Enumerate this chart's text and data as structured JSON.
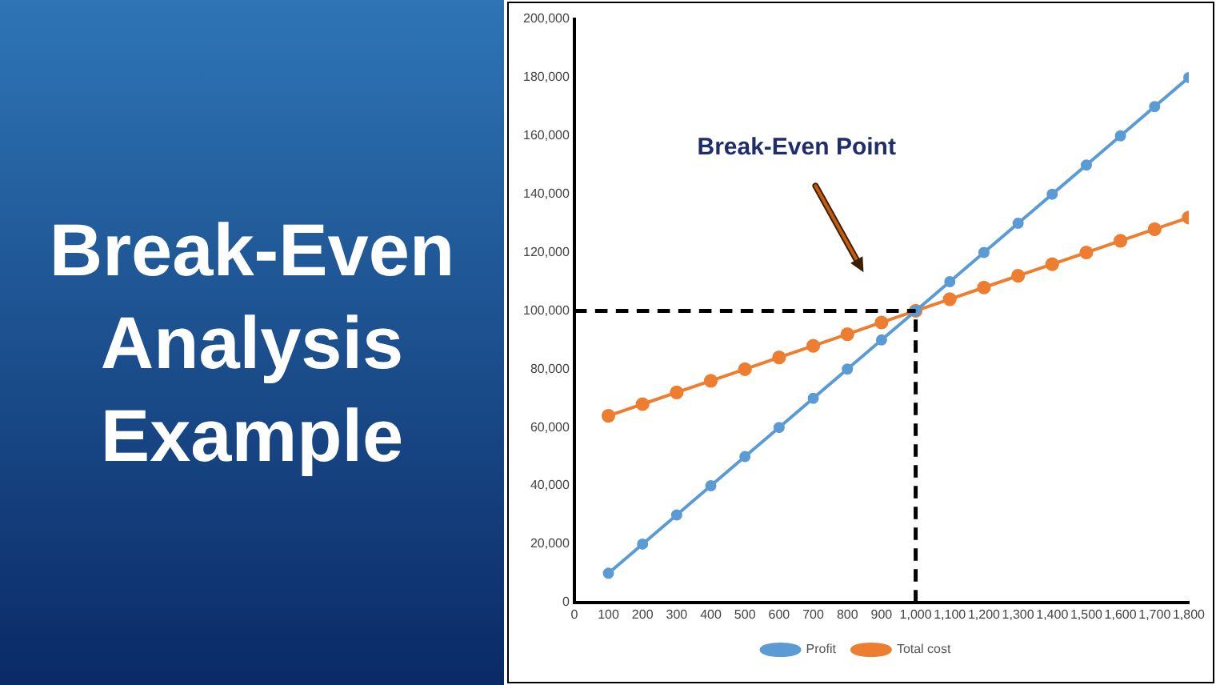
{
  "chart_data": {
    "type": "line",
    "title": "Break-Even Analysis Example",
    "x": [
      100,
      200,
      300,
      400,
      500,
      600,
      700,
      800,
      900,
      1000,
      1100,
      1200,
      1300,
      1400,
      1500,
      1600,
      1700,
      1800
    ],
    "series": [
      {
        "name": "Profit",
        "color": "#5b9bd5",
        "values": [
          10000,
          20000,
          30000,
          40000,
          50000,
          60000,
          70000,
          80000,
          90000,
          100000,
          110000,
          120000,
          130000,
          140000,
          150000,
          160000,
          170000,
          180000
        ]
      },
      {
        "name": "Total cost",
        "color": "#ed7d31",
        "values": [
          64000,
          68000,
          72000,
          76000,
          80000,
          84000,
          88000,
          92000,
          96000,
          100000,
          104000,
          108000,
          112000,
          116000,
          120000,
          124000,
          128000,
          132000
        ]
      }
    ],
    "xlim": [
      0,
      1800
    ],
    "xticks": [
      {
        "value": 0,
        "label": "0"
      },
      {
        "value": 100,
        "label": "100"
      },
      {
        "value": 200,
        "label": "200"
      },
      {
        "value": 300,
        "label": "300"
      },
      {
        "value": 400,
        "label": "400"
      },
      {
        "value": 500,
        "label": "500"
      },
      {
        "value": 600,
        "label": "600"
      },
      {
        "value": 700,
        "label": "700"
      },
      {
        "value": 800,
        "label": "800"
      },
      {
        "value": 900,
        "label": "900"
      },
      {
        "value": 1000,
        "label": "1,000"
      },
      {
        "value": 1100,
        "label": "1,100"
      },
      {
        "value": 1200,
        "label": "1,200"
      },
      {
        "value": 1300,
        "label": "1,300"
      },
      {
        "value": 1400,
        "label": "1,400"
      },
      {
        "value": 1500,
        "label": "1,500"
      },
      {
        "value": 1600,
        "label": "1,600"
      },
      {
        "value": 1700,
        "label": "1,700"
      },
      {
        "value": 1800,
        "label": "1,800"
      }
    ],
    "ylim": [
      0,
      200000
    ],
    "yticks": [
      {
        "value": 0,
        "label": "0"
      },
      {
        "value": 20000,
        "label": "20,000"
      },
      {
        "value": 40000,
        "label": "40,000"
      },
      {
        "value": 60000,
        "label": "60,000"
      },
      {
        "value": 80000,
        "label": "80,000"
      },
      {
        "value": 100000,
        "label": "100,000"
      },
      {
        "value": 120000,
        "label": "120,000"
      },
      {
        "value": 140000,
        "label": "140,000"
      },
      {
        "value": 160000,
        "label": "160,000"
      },
      {
        "value": 180000,
        "label": "180,000"
      },
      {
        "value": 200000,
        "label": "200,000"
      }
    ],
    "ref_lines": [
      {
        "axis": "y",
        "value": 100000,
        "color": "#000000",
        "line_style": "dashed"
      },
      {
        "axis": "x",
        "value": 1000,
        "color": "#000000",
        "line_style": "dashed"
      }
    ],
    "annotations": [
      "Break-Even Point"
    ],
    "grid": false,
    "legend": "bottom",
    "marker": "circle",
    "line_style": "solid"
  }
}
